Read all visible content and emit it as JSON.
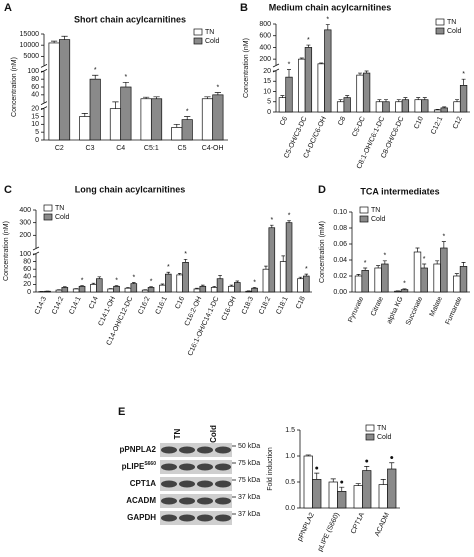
{
  "panel_labels": [
    "A",
    "B",
    "C",
    "D",
    "E"
  ],
  "chart_data": [
    {
      "type": "bar",
      "title": "Short chain acylcarnitines",
      "y_label": "Concentration (nM)",
      "categories": [
        "C2",
        "C3",
        "C4",
        "C5:1",
        "C5",
        "C4-OH"
      ],
      "ylim": [
        0,
        15000
      ],
      "ysegments": [
        [
          0,
          20
        ],
        [
          20,
          100
        ],
        [
          1000,
          15000
        ]
      ],
      "yticks": [
        0,
        5,
        10,
        15,
        20,
        40,
        60,
        80,
        100,
        5000,
        10000,
        15000
      ],
      "legend": "upper right",
      "series": [
        {
          "name": "TN",
          "color": "#ffffff",
          "values": [
            11000,
            15,
            20,
            30,
            8,
            30
          ],
          "errors": [
            800,
            2,
            2,
            4,
            2,
            5
          ]
        },
        {
          "name": "Cold",
          "color": "#8a8a8a",
          "values": [
            12500,
            80,
            60,
            30,
            13,
            40
          ],
          "errors": [
            1500,
            10,
            12,
            5,
            2,
            6
          ],
          "stars": [
            null,
            "*",
            "*",
            null,
            "*",
            "*"
          ]
        }
      ]
    },
    {
      "type": "bar",
      "title": "Medium chain acylcarnitines",
      "y_label": "Concentration (nM)",
      "categories": [
        "C6",
        "C5-OH/C3-DC",
        "C4-DC/C6-OH",
        "C8",
        "C5-DC",
        "C8:1-OH/C6:1-DC",
        "C8-OH/C6-DC",
        "C10",
        "C12:1",
        "C12"
      ],
      "ylim": [
        0,
        800
      ],
      "ysegments": [
        [
          0,
          20
        ],
        [
          100,
          800
        ]
      ],
      "yticks": [
        0,
        5,
        10,
        15,
        20,
        200,
        400,
        600,
        800
      ],
      "legend": "upper right",
      "series": [
        {
          "name": "TN",
          "color": "#ffffff",
          "values": [
            7,
            200,
            120,
            5,
            18,
            5,
            5,
            6,
            1,
            5
          ],
          "errors": [
            1,
            20,
            15,
            1,
            1,
            1,
            1,
            1,
            0.3,
            1
          ]
        },
        {
          "name": "Cold",
          "color": "#8a8a8a",
          "values": [
            17,
            400,
            700,
            7,
            19,
            5,
            6,
            6,
            2,
            13
          ],
          "errors": [
            4,
            40,
            90,
            1,
            1,
            1,
            1,
            1,
            0.5,
            3
          ],
          "stars": [
            "*",
            "*",
            "*",
            null,
            null,
            null,
            null,
            null,
            null,
            "*"
          ]
        }
      ]
    },
    {
      "type": "bar",
      "title": "Long chain acylcarnitines",
      "y_label": "Concentration (nM)",
      "categories": [
        "C14:3",
        "C14:2",
        "C14:1",
        "C14",
        "C14:1-OH",
        "C14-OH/C12-DC",
        "C16:2",
        "C16:1",
        "C16",
        "C16:2-OH",
        "C16:1-OH/C14:1-DC",
        "C16-OH",
        "C18:3",
        "C18:2",
        "C18:1",
        "C18"
      ],
      "ylim": [
        0,
        400
      ],
      "ysegments": [
        [
          0,
          100
        ],
        [
          100,
          400
        ]
      ],
      "yticks": [
        0,
        20,
        40,
        60,
        80,
        100,
        200,
        300,
        400
      ],
      "legend": "upper left",
      "series": [
        {
          "name": "TN",
          "color": "#ffffff",
          "values": [
            1,
            5,
            8,
            20,
            8,
            10,
            5,
            18,
            45,
            8,
            12,
            15,
            2,
            60,
            80,
            35
          ],
          "errors": [
            0.5,
            1,
            1,
            3,
            1,
            2,
            1,
            3,
            4,
            2,
            3,
            3,
            1,
            8,
            15,
            4
          ]
        },
        {
          "name": "Cold",
          "color": "#8a8a8a",
          "values": [
            2,
            12,
            15,
            35,
            15,
            22,
            12,
            47,
            78,
            15,
            35,
            25,
            10,
            260,
            300,
            42
          ],
          "errors": [
            0.5,
            2,
            2,
            5,
            2,
            3,
            2,
            5,
            8,
            3,
            8,
            4,
            2,
            20,
            15,
            5
          ],
          "stars": [
            null,
            null,
            "*",
            null,
            "*",
            "*",
            "*",
            "*",
            "*",
            null,
            null,
            null,
            "*",
            "*",
            "*",
            "*"
          ]
        }
      ]
    },
    {
      "type": "bar",
      "title": "TCA intermediates",
      "y_label": "Concentration (mM)",
      "categories": [
        "Pyruvate",
        "Citrate",
        "alpha KG",
        "Succinate",
        "Malate",
        "Fumarate"
      ],
      "ylim": [
        0,
        0.1
      ],
      "yticks": [
        {
          "value": 0,
          "label": "0.00"
        },
        {
          "value": 0.02,
          "label": "0.02"
        },
        {
          "value": 0.04,
          "label": "0.04"
        },
        {
          "value": 0.06,
          "label": "0.06"
        },
        {
          "value": 0.08,
          "label": "0.08"
        },
        {
          "value": 0.1,
          "label": "0.10"
        }
      ],
      "legend": "upper left",
      "series": [
        {
          "name": "TN",
          "color": "#ffffff",
          "values": [
            0.02,
            0.03,
            0.001,
            0.05,
            0.035,
            0.02
          ],
          "errors": [
            0.002,
            0.003,
            0.0005,
            0.005,
            0.004,
            0.003
          ]
        },
        {
          "name": "Cold",
          "color": "#8a8a8a",
          "values": [
            0.027,
            0.035,
            0.003,
            0.03,
            0.055,
            0.032
          ],
          "errors": [
            0.003,
            0.004,
            0.001,
            0.005,
            0.008,
            0.005
          ],
          "stars": [
            "*",
            "*",
            "*",
            "*",
            "*",
            null
          ]
        }
      ]
    },
    {
      "type": "bar",
      "y_label": "Fold induction",
      "categories": [
        "pPNPLA2",
        "pLIPE (S660)",
        "CPT1A",
        "ACADM"
      ],
      "ylim": [
        0,
        1.5
      ],
      "yticks": [
        {
          "value": 0,
          "label": "0.0"
        },
        {
          "value": 0.5,
          "label": "0.5"
        },
        {
          "value": 1,
          "label": "1.0"
        },
        {
          "value": 1.5,
          "label": "1.5"
        }
      ],
      "legend": "upper right",
      "series": [
        {
          "name": "TN",
          "color": "#ffffff",
          "values": [
            1.0,
            0.5,
            0.43,
            0.45
          ],
          "errors": [
            0.02,
            0.06,
            0.04,
            0.1
          ]
        },
        {
          "name": "Cold",
          "color": "#8a8a8a",
          "values": [
            0.55,
            0.32,
            0.72,
            0.75
          ],
          "errors": [
            0.12,
            0.08,
            0.08,
            0.12
          ],
          "stars": [
            "●",
            "●",
            "●",
            "●"
          ]
        }
      ]
    }
  ],
  "blot": {
    "columns": [
      "TN",
      "Cold"
    ],
    "rows": [
      {
        "label": "pPNPLA2",
        "kda": "50 kDa"
      },
      {
        "label": "pLIPE",
        "sup": "S660",
        "kda": "75 kDa"
      },
      {
        "label": "CPT1A",
        "kda": "75 kDa"
      },
      {
        "label": "ACADM",
        "kda": "37 kDa"
      },
      {
        "label": "GAPDH",
        "kda": "37 kDa"
      }
    ]
  }
}
